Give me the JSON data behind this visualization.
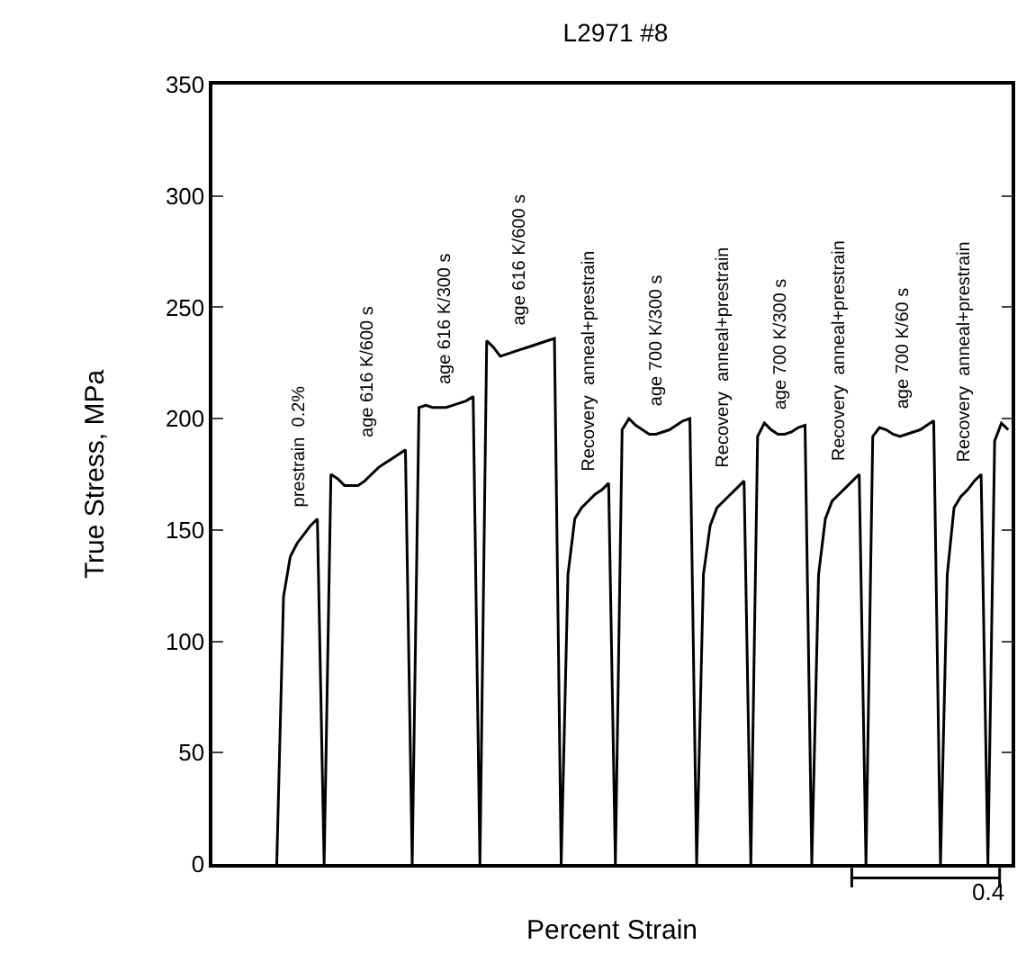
{
  "chart_data": {
    "type": "line",
    "title": "L2971 #8",
    "xlabel": "Percent Strain",
    "ylabel": "True Stress, MPa",
    "categories": [
      null,
      null,
      null,
      null,
      null,
      null,
      null,
      null,
      null,
      null,
      null,
      null,
      null,
      null,
      null,
      null,
      null,
      null,
      null,
      null,
      null,
      null,
      null,
      null,
      null,
      null,
      null,
      null,
      null,
      null,
      null,
      null,
      null,
      null,
      null,
      null,
      null,
      null,
      null,
      null,
      null,
      null,
      null,
      null,
      null,
      null,
      null,
      null,
      null,
      null,
      null,
      null,
      null,
      null,
      null,
      null,
      null,
      null,
      null,
      null,
      null,
      null,
      null,
      null,
      null,
      null,
      null,
      null,
      null,
      null,
      null,
      null,
      null,
      null,
      null,
      null,
      null,
      null,
      null,
      null,
      null,
      null,
      null,
      null,
      null,
      null,
      null,
      null,
      null,
      null,
      null,
      null,
      null,
      null,
      null,
      null,
      null,
      null,
      null,
      null,
      null,
      null,
      null,
      null,
      null,
      null,
      null,
      null,
      null,
      null,
      null,
      null,
      null,
      null,
      null,
      null,
      null,
      null
    ],
    "series": [
      {
        "color": "#000000",
        "values": [
          null,
          null,
          null,
          null,
          null,
          null,
          null,
          null,
          null,
          0,
          120,
          138,
          144,
          148,
          152,
          155,
          0,
          175,
          173,
          170,
          170,
          170,
          172,
          175,
          178,
          180,
          182,
          184,
          186,
          0,
          205,
          206,
          205,
          205,
          205,
          206,
          207,
          208,
          210,
          0,
          235,
          232,
          228,
          229,
          230,
          231,
          232,
          233,
          234,
          235,
          236,
          0,
          130,
          155,
          160,
          163,
          166,
          168,
          171,
          0,
          195,
          200,
          197,
          195,
          193,
          193,
          194,
          195,
          197,
          199,
          200,
          0,
          130,
          152,
          160,
          163,
          166,
          169,
          172,
          0,
          192,
          198,
          195,
          193,
          193,
          194,
          196,
          197,
          0,
          130,
          155,
          163,
          166,
          169,
          172,
          175,
          0,
          192,
          196,
          195,
          193,
          192,
          193,
          194,
          195,
          197,
          199,
          0,
          130,
          160,
          165,
          168,
          172,
          175,
          0,
          190,
          198,
          195
        ]
      }
    ],
    "annotations": [
      "prestrain  0.2%",
      "age 616 K/600 s",
      "age 616 K/300 s",
      "age 616 K/600 s",
      "Recovery  anneal+prestrain",
      "age 700 K/300 s",
      "Recovery  anneal+prestrain",
      "age 700 K/300 s",
      "Recovery  anneal+prestrain",
      "age 700 K/60 s",
      "Recovery  anneal+prestrain",
      "0.4"
    ],
    "ylim": [
      0,
      350
    ],
    "yticks": [
      0,
      50,
      100,
      150,
      200,
      250,
      300,
      350
    ],
    "legend": false,
    "tick_labels": "y",
    "marker": "none",
    "line_style": "solid"
  }
}
